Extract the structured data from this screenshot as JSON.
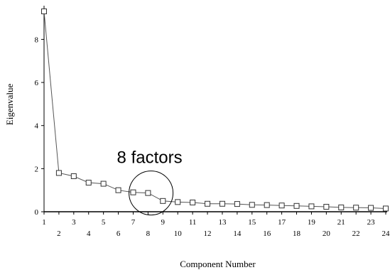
{
  "chart_data": {
    "type": "line",
    "title": "",
    "xlabel": "Component Number",
    "ylabel": "Eigenvalue",
    "x": [
      1,
      2,
      3,
      4,
      5,
      6,
      7,
      8,
      9,
      10,
      11,
      12,
      13,
      14,
      15,
      16,
      17,
      18,
      19,
      20,
      21,
      22,
      23,
      24
    ],
    "series": [
      {
        "values": [
          9.3,
          1.8,
          1.65,
          1.35,
          1.3,
          1.0,
          0.9,
          0.87,
          0.5,
          0.45,
          0.43,
          0.37,
          0.37,
          0.36,
          0.32,
          0.31,
          0.29,
          0.27,
          0.25,
          0.23,
          0.2,
          0.19,
          0.18,
          0.15
        ],
        "color": "#555555",
        "marker": "square"
      }
    ],
    "xlim": [
      1,
      24
    ],
    "ylim": [
      0,
      9.3
    ],
    "yticks": [
      0,
      2,
      4,
      6,
      8
    ],
    "xticks": [
      1,
      2,
      3,
      4,
      5,
      6,
      7,
      8,
      9,
      10,
      11,
      12,
      13,
      14,
      15,
      16,
      17,
      18,
      19,
      20,
      21,
      22,
      23,
      24
    ],
    "grid": false,
    "legend": "none",
    "annotations": [
      {
        "text": "8 factors",
        "x": 8.2,
        "y": 0.87,
        "shape": "circle"
      }
    ]
  }
}
